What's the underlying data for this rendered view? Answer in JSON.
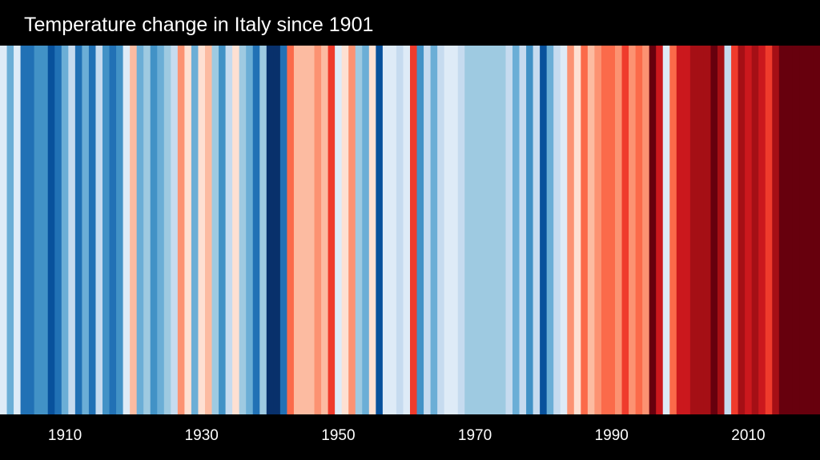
{
  "chart_data": {
    "type": "heatmap",
    "title": "Temperature change in Italy since 1901",
    "x_start": 1901,
    "x_end": 2020,
    "tick_labels": [
      "1910",
      "1930",
      "1950",
      "1970",
      "1990",
      "2010"
    ],
    "tick_values": [
      1910,
      1930,
      1950,
      1970,
      1990,
      2010
    ],
    "color_scale": [
      "#08306b",
      "#08519c",
      "#2171b5",
      "#4292c6",
      "#6baed6",
      "#9ecae1",
      "#c6dbef",
      "#deebf7",
      "#fee0d2",
      "#fcbba1",
      "#fc9272",
      "#fb6a4a",
      "#ef3b2c",
      "#cb181d",
      "#a50f15",
      "#67000d"
    ],
    "anomaly_levels": [
      7,
      4,
      7,
      2,
      2,
      3,
      3,
      1,
      2,
      4,
      6,
      2,
      4,
      2,
      6,
      3,
      2,
      3,
      7,
      9,
      4,
      5,
      3,
      4,
      5,
      6,
      10,
      8,
      4,
      8,
      9,
      5,
      3,
      6,
      8,
      5,
      4,
      2,
      5,
      0,
      0,
      2,
      11,
      9,
      9,
      9,
      10,
      9,
      12,
      7,
      8,
      10,
      5,
      4,
      8,
      1,
      7,
      7,
      6,
      7,
      12,
      3,
      6,
      4,
      6,
      7,
      7,
      6,
      5,
      5,
      5,
      5,
      5,
      5,
      6,
      4,
      6,
      3,
      6,
      1,
      4,
      6,
      7,
      10,
      8,
      11,
      9,
      10,
      11,
      11,
      10,
      12,
      10,
      11,
      10,
      15,
      13,
      7,
      11,
      13,
      13,
      14,
      14,
      14,
      15,
      14,
      6,
      12,
      14,
      13,
      14,
      13,
      12,
      14,
      15,
      15,
      15,
      15,
      15,
      15
    ]
  }
}
